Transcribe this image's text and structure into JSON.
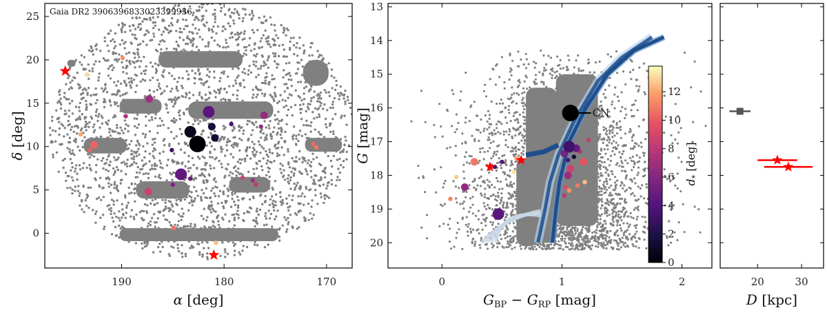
{
  "chart_data": [
    {
      "type": "scatter",
      "panel": "sky",
      "annotation": "Gaia DR2 3906396833023399936",
      "xlabel_symbol": "α",
      "xlabel_unit": " [deg]",
      "ylabel_symbol": "δ",
      "ylabel_unit": " [deg]",
      "xlim": [
        197.5,
        167.5
      ],
      "ylim": [
        -4,
        26.5
      ],
      "xticks": [
        190,
        180,
        170
      ],
      "yticks": [
        0,
        5,
        10,
        15,
        20,
        25
      ],
      "footprint_circle": {
        "ra": 182.2,
        "dec": 11.8,
        "radius": 14.8
      },
      "dense_regions": [
        {
          "ra": [
            183.5,
            175.2
          ],
          "dec": [
            13.2,
            15.2
          ]
        },
        {
          "ra": [
            190.2,
            186.1
          ],
          "dec": [
            13.8,
            15.5
          ]
        },
        {
          "ra": [
            186.4,
            178.2
          ],
          "dec": [
            19.1,
            21.0
          ]
        },
        {
          "ra": [
            193.7,
            189.5
          ],
          "dec": [
            9.2,
            11.0
          ]
        },
        {
          "ra": [
            172.1,
            168.5
          ],
          "dec": [
            9.4,
            11.0
          ]
        },
        {
          "ra": [
            188.6,
            183.4
          ],
          "dec": [
            4.0,
            6.0
          ]
        },
        {
          "ra": [
            179.5,
            175.5
          ],
          "dec": [
            4.7,
            6.5
          ]
        },
        {
          "ra": [
            190.2,
            174.7
          ],
          "dec": [
            -0.9,
            0.6
          ]
        },
        {
          "ra": [
            172.3,
            169.8
          ],
          "dec": [
            17.0,
            20.0
          ]
        },
        {
          "ra": [
            195.3,
            194.5
          ],
          "dec": [
            19.2,
            20.0
          ]
        }
      ],
      "members": [
        {
          "ra": 182.6,
          "dec": 10.3,
          "d": 0.0,
          "size": "xl"
        },
        {
          "ra": 183.3,
          "dec": 11.7,
          "d": 0.8,
          "size": "l"
        },
        {
          "ra": 180.9,
          "dec": 11.0,
          "d": 1.3,
          "size": "m"
        },
        {
          "ra": 181.2,
          "dec": 12.3,
          "d": 1.6,
          "size": "m"
        },
        {
          "ra": 179.3,
          "dec": 12.6,
          "d": 3.6,
          "size": "s"
        },
        {
          "ra": 185.1,
          "dec": 9.6,
          "d": 3.1,
          "size": "s"
        },
        {
          "ra": 181.5,
          "dec": 14.0,
          "d": 4.3,
          "size": "l"
        },
        {
          "ra": 184.2,
          "dec": 6.8,
          "d": 4.6,
          "size": "l"
        },
        {
          "ra": 183.3,
          "dec": 6.3,
          "d": 4.9,
          "size": "s"
        },
        {
          "ra": 185.0,
          "dec": 5.6,
          "d": 5.6,
          "size": "s"
        },
        {
          "ra": 176.1,
          "dec": 13.6,
          "d": 6.6,
          "size": "m"
        },
        {
          "ra": 176.4,
          "dec": 12.3,
          "d": 6.6,
          "size": "s"
        },
        {
          "ra": 187.3,
          "dec": 15.5,
          "d": 6.9,
          "size": "m"
        },
        {
          "ra": 189.6,
          "dec": 13.5,
          "d": 7.5,
          "size": "s"
        },
        {
          "ra": 177.2,
          "dec": 6.1,
          "d": 7.0,
          "size": "s"
        },
        {
          "ra": 176.9,
          "dec": 5.6,
          "d": 8.0,
          "size": "s"
        },
        {
          "ra": 178.2,
          "dec": 6.4,
          "d": 8.6,
          "size": "s"
        },
        {
          "ra": 187.4,
          "dec": 4.8,
          "d": 8.7,
          "size": "m"
        },
        {
          "ra": 192.7,
          "dec": 10.2,
          "d": 10.3,
          "size": "m"
        },
        {
          "ra": 193.1,
          "dec": 9.6,
          "d": 10.4,
          "size": "s"
        },
        {
          "ra": 171.3,
          "dec": 10.3,
          "d": 10.4,
          "size": "s"
        },
        {
          "ra": 171.0,
          "dec": 9.9,
          "d": 10.8,
          "size": "s"
        },
        {
          "ra": 184.9,
          "dec": 0.6,
          "d": 10.7,
          "size": "s"
        },
        {
          "ra": 189.9,
          "dec": 20.2,
          "d": 11.5,
          "size": "s"
        },
        {
          "ra": 194.0,
          "dec": 11.4,
          "d": 12.0,
          "size": "s"
        },
        {
          "ra": 180.8,
          "dec": -1.1,
          "d": 12.5,
          "size": "s"
        },
        {
          "ra": 193.4,
          "dec": 18.3,
          "d": 13.0,
          "size": "s"
        }
      ],
      "stream_stars": [
        {
          "ra": 195.5,
          "dec": 18.7
        },
        {
          "ra": 181.0,
          "dec": -2.5
        }
      ]
    },
    {
      "type": "scatter",
      "panel": "cmd",
      "xlabel_base": "G",
      "xlabel_sub1": "BP",
      "xlabel_minus": " − ",
      "xlabel_sub2": "RP",
      "xlabel_unit": " [mag]",
      "ylabel_symbol": "G",
      "ylabel_unit": " [mag]",
      "xlim": [
        -0.45,
        2.25
      ],
      "ylim": [
        20.75,
        12.9
      ],
      "xticks": [
        0,
        1,
        2
      ],
      "yticks": [
        13,
        14,
        15,
        16,
        17,
        18,
        19,
        20
      ],
      "cn_label": "CN",
      "cn_point": {
        "color": 1.07,
        "g": 16.15
      },
      "colorbar": {
        "label_symbol": "d",
        "label_sub": "*",
        "label_unit": " [deg]",
        "ticks": [
          0,
          2,
          4,
          6,
          8,
          10,
          12
        ],
        "range": [
          0,
          13.8
        ]
      },
      "members": [
        {
          "color": 1.06,
          "g": 17.15,
          "d": 3.3,
          "size": "l"
        },
        {
          "color": 1.12,
          "g": 17.2,
          "d": 4.8,
          "size": "m"
        },
        {
          "color": 1.02,
          "g": 17.35,
          "d": 5.6,
          "size": "m"
        },
        {
          "color": 1.1,
          "g": 17.45,
          "d": 1.5,
          "size": "s"
        },
        {
          "color": 1.05,
          "g": 17.55,
          "d": 3.9,
          "size": "s"
        },
        {
          "color": 1.18,
          "g": 17.6,
          "d": 9.9,
          "size": "m"
        },
        {
          "color": 1.15,
          "g": 17.3,
          "d": 7.5,
          "size": "s"
        },
        {
          "color": 1.22,
          "g": 16.95,
          "d": 8.2,
          "size": "s"
        },
        {
          "color": 1.07,
          "g": 17.8,
          "d": 8.7,
          "size": "m"
        },
        {
          "color": 1.05,
          "g": 18.0,
          "d": 6.8,
          "size": "m"
        },
        {
          "color": 1.03,
          "g": 18.35,
          "d": 9.4,
          "size": "s"
        },
        {
          "color": 1.02,
          "g": 18.6,
          "d": 8.0,
          "size": "s"
        },
        {
          "color": 1.06,
          "g": 18.45,
          "d": 11.5,
          "size": "s"
        },
        {
          "color": 1.13,
          "g": 18.3,
          "d": 10.9,
          "size": "s"
        },
        {
          "color": 1.19,
          "g": 18.2,
          "d": 12.4,
          "size": "s"
        },
        {
          "color": 0.27,
          "g": 17.6,
          "d": 10.8,
          "size": "m"
        },
        {
          "color": 0.44,
          "g": 17.75,
          "d": 3.6,
          "size": "s"
        },
        {
          "color": 0.5,
          "g": 17.6,
          "d": 4.2,
          "size": "s"
        },
        {
          "color": 0.62,
          "g": 17.5,
          "d": 11.9,
          "size": "s"
        },
        {
          "color": 0.19,
          "g": 18.35,
          "d": 6.5,
          "size": "m"
        },
        {
          "color": 0.12,
          "g": 18.05,
          "d": 12.7,
          "size": "s"
        },
        {
          "color": 0.07,
          "g": 18.7,
          "d": 11.2,
          "size": "s"
        },
        {
          "color": 0.47,
          "g": 19.15,
          "d": 4.3,
          "size": "l"
        },
        {
          "color": 0.6,
          "g": 17.9,
          "d": 13.2,
          "size": "s"
        }
      ],
      "stream_stars": [
        {
          "color": 0.66,
          "g": 17.55
        },
        {
          "color": 0.4,
          "g": 17.75
        }
      ]
    },
    {
      "type": "scatter",
      "panel": "distance",
      "xlabel_symbol": "D",
      "xlabel_unit": " [kpc]",
      "xlim": [
        11.5,
        35
      ],
      "ylim": [
        20.75,
        12.9
      ],
      "xticks": [
        20,
        30
      ],
      "points": [
        {
          "D": 16.0,
          "g": 16.1,
          "xerr": 2.4,
          "kind": "square"
        },
        {
          "D": 24.5,
          "g": 17.55,
          "xerr": 4.5,
          "kind": "star"
        },
        {
          "D": 27.0,
          "g": 17.75,
          "xerr": 5.5,
          "kind": "star"
        }
      ]
    }
  ],
  "colors": {
    "field": "#808080",
    "stream_star": "#ff0000",
    "isochrone": "#1f4e8c",
    "member_cmap": "magma"
  }
}
